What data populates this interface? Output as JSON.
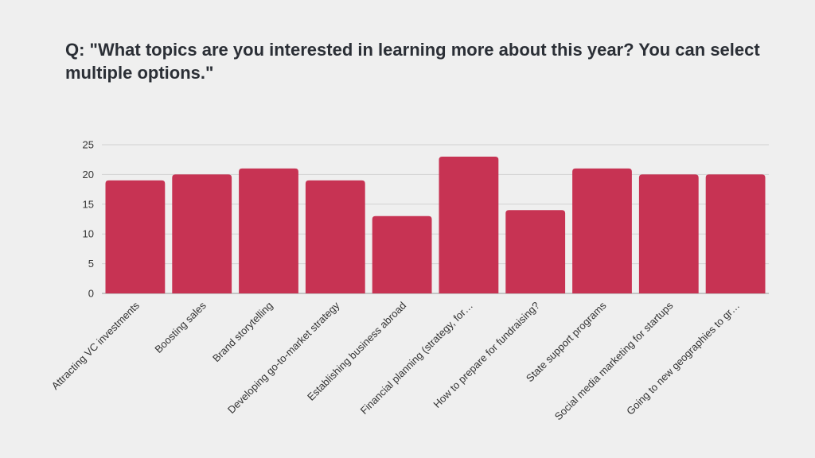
{
  "title": "Q: \"What topics are you interested in learning more about this year? You can select multiple options.\"",
  "colors": {
    "bar": "#c73353",
    "grid": "#d2d2d2",
    "axis": "#9a9a9a",
    "background": "#efefef"
  },
  "chart_data": {
    "type": "bar",
    "title": "Q: \"What topics are you interested in learning more about this year? You can select multiple options.\"",
    "xlabel": "",
    "ylabel": "",
    "categories": [
      "Attracting VC investments",
      "Boosting sales",
      "Brand storytelling",
      "Developing go-to-market strategy",
      "Establishing business abroad",
      "Financial planning (strategy, for…",
      "How to prepare for fundraising?",
      "State support programs",
      "Social media marketing for startups",
      "Going to new geographies to gr…"
    ],
    "values": [
      19,
      20,
      21,
      19,
      13,
      23,
      14,
      21,
      20,
      20
    ],
    "ylim": [
      0,
      25
    ],
    "yticks": [
      0,
      5,
      10,
      15,
      20,
      25
    ],
    "grid": true,
    "legend": "none"
  }
}
